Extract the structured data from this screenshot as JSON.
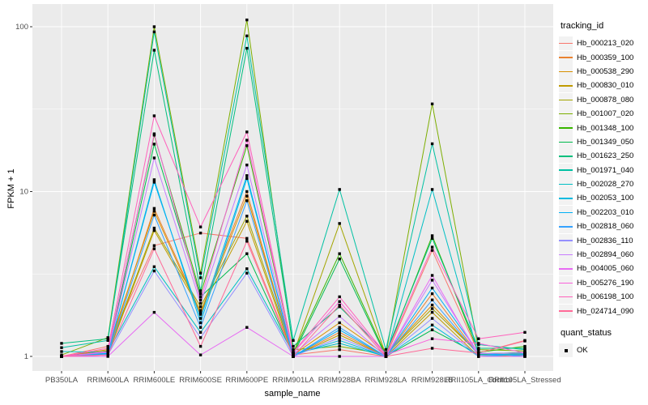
{
  "chart_data": {
    "type": "line",
    "xlabel": "sample_name",
    "ylabel": "FPKM + 1",
    "y_scale": "log10",
    "y_ticks": [
      "1",
      "10",
      "100"
    ],
    "ylim": [
      0.82,
      137
    ],
    "grid": true,
    "legend_position": "right",
    "legend_titles": {
      "color": "tracking_id",
      "shape": "quant_status"
    },
    "quant_status_label": "OK",
    "colors": {
      "panel_bg": "#EBEBEB",
      "grid_line": "#FFFFFF",
      "point": "#000000",
      "legend_key_bg": "#F2F2F2",
      "axis_text": "#4D4D4D",
      "tick_mark": "#333333"
    },
    "categories": [
      "PB350LA",
      "RRIM600LA",
      "RRIM600LE",
      "RRIM600SE",
      "RRIM600PE",
      "RRIM901LA",
      "RRIM928BA",
      "RRIM928LA",
      "RRIM928LB",
      "RRII105LA_Control",
      "RRII105LA_Stressed"
    ],
    "series": [
      {
        "name": "Hb_000213_020",
        "color": "#F8766D",
        "values": [
          1.0,
          1.15,
          4.7,
          5.6,
          5.2,
          1.02,
          1.1,
          1.0,
          4.4,
          1.05,
          1.25
        ]
      },
      {
        "name": "Hb_000359_100",
        "color": "#EA8331",
        "values": [
          1.0,
          1.05,
          7.9,
          1.85,
          10.0,
          1.0,
          1.4,
          1.0,
          2.4,
          1.02,
          1.02
        ]
      },
      {
        "name": "Hb_000538_290",
        "color": "#D89000",
        "values": [
          1.0,
          1.1,
          7.6,
          1.8,
          9.4,
          1.02,
          1.6,
          1.02,
          2.05,
          1.03,
          1.03
        ]
      },
      {
        "name": "Hb_000830_010",
        "color": "#C09B00",
        "values": [
          1.0,
          1.02,
          5.8,
          1.9,
          6.6,
          1.0,
          1.35,
          1.0,
          1.85,
          1.0,
          1.02
        ]
      },
      {
        "name": "Hb_000878_080",
        "color": "#A3A500",
        "values": [
          1.0,
          1.05,
          6.0,
          2.0,
          7.1,
          1.03,
          6.4,
          1.02,
          1.95,
          1.04,
          1.05
        ]
      },
      {
        "name": "Hb_001007_020",
        "color": "#7CAE00",
        "values": [
          1.02,
          1.3,
          100,
          3.2,
          110,
          1.1,
          1.15,
          1.03,
          34,
          1.1,
          1.08
        ]
      },
      {
        "name": "Hb_001348_100",
        "color": "#39B600",
        "values": [
          1.0,
          1.08,
          22.0,
          2.4,
          19.0,
          1.05,
          4.2,
          1.02,
          5.4,
          1.06,
          1.15
        ]
      },
      {
        "name": "Hb_001349_050",
        "color": "#00BB4E",
        "values": [
          1.0,
          1.05,
          19.4,
          2.3,
          4.2,
          1.02,
          3.9,
          1.0,
          1.45,
          1.03,
          1.06
        ]
      },
      {
        "name": "Hb_001623_250",
        "color": "#00BF7D",
        "values": [
          1.2,
          1.28,
          72,
          2.5,
          74,
          1.15,
          2.0,
          1.05,
          5.2,
          1.12,
          1.12
        ]
      },
      {
        "name": "Hb_001971_040",
        "color": "#00C1A3",
        "values": [
          1.13,
          1.25,
          93,
          3.0,
          88,
          1.25,
          10.3,
          1.1,
          19.5,
          1.18,
          1.1
        ]
      },
      {
        "name": "Hb_002028_270",
        "color": "#00BFC4",
        "values": [
          1.07,
          1.06,
          3.5,
          1.4,
          3.4,
          1.04,
          1.2,
          1.0,
          10.3,
          1.02,
          1.04
        ]
      },
      {
        "name": "Hb_002053_100",
        "color": "#00BAE0",
        "values": [
          1.0,
          1.04,
          11.8,
          1.6,
          12.0,
          1.02,
          1.25,
          1.0,
          1.55,
          1.0,
          1.03
        ]
      },
      {
        "name": "Hb_002203_010",
        "color": "#00B0F6",
        "values": [
          1.0,
          1.05,
          11.4,
          1.7,
          12.5,
          1.0,
          1.45,
          1.0,
          2.6,
          1.05,
          1.0
        ]
      },
      {
        "name": "Hb_002818_060",
        "color": "#35A2FF",
        "values": [
          1.0,
          1.03,
          7.2,
          1.5,
          8.8,
          1.0,
          1.5,
          1.0,
          2.2,
          1.02,
          1.02
        ]
      },
      {
        "name": "Hb_002836_110",
        "color": "#9590FF",
        "values": [
          1.0,
          1.02,
          3.3,
          1.3,
          3.2,
          1.0,
          1.3,
          1.0,
          1.7,
          1.0,
          1.0
        ]
      },
      {
        "name": "Hb_002894_060",
        "color": "#C77CFF",
        "values": [
          1.0,
          1.06,
          16.0,
          2.1,
          14.5,
          1.03,
          1.75,
          1.0,
          2.9,
          1.04,
          1.05
        ]
      },
      {
        "name": "Hb_004005_060",
        "color": "#E76BF3",
        "values": [
          1.0,
          1.0,
          1.85,
          1.02,
          1.5,
          1.0,
          1.0,
          1.0,
          3.1,
          1.0,
          1.0
        ]
      },
      {
        "name": "Hb_005276_190",
        "color": "#FA62DB",
        "values": [
          1.0,
          1.07,
          22.4,
          2.2,
          20.5,
          1.05,
          2.15,
          1.02,
          1.28,
          1.2,
          1.05
        ]
      },
      {
        "name": "Hb_006198_100",
        "color": "#FF62BC",
        "values": [
          1.0,
          1.12,
          28.8,
          6.1,
          23.0,
          1.06,
          2.3,
          1.03,
          4.6,
          1.28,
          1.4
        ]
      },
      {
        "name": "Hb_024714_090",
        "color": "#FF6A98",
        "values": [
          1.0,
          1.02,
          4.5,
          1.15,
          5.0,
          1.0,
          2.05,
          1.0,
          1.12,
          1.05,
          1.24
        ]
      }
    ]
  }
}
